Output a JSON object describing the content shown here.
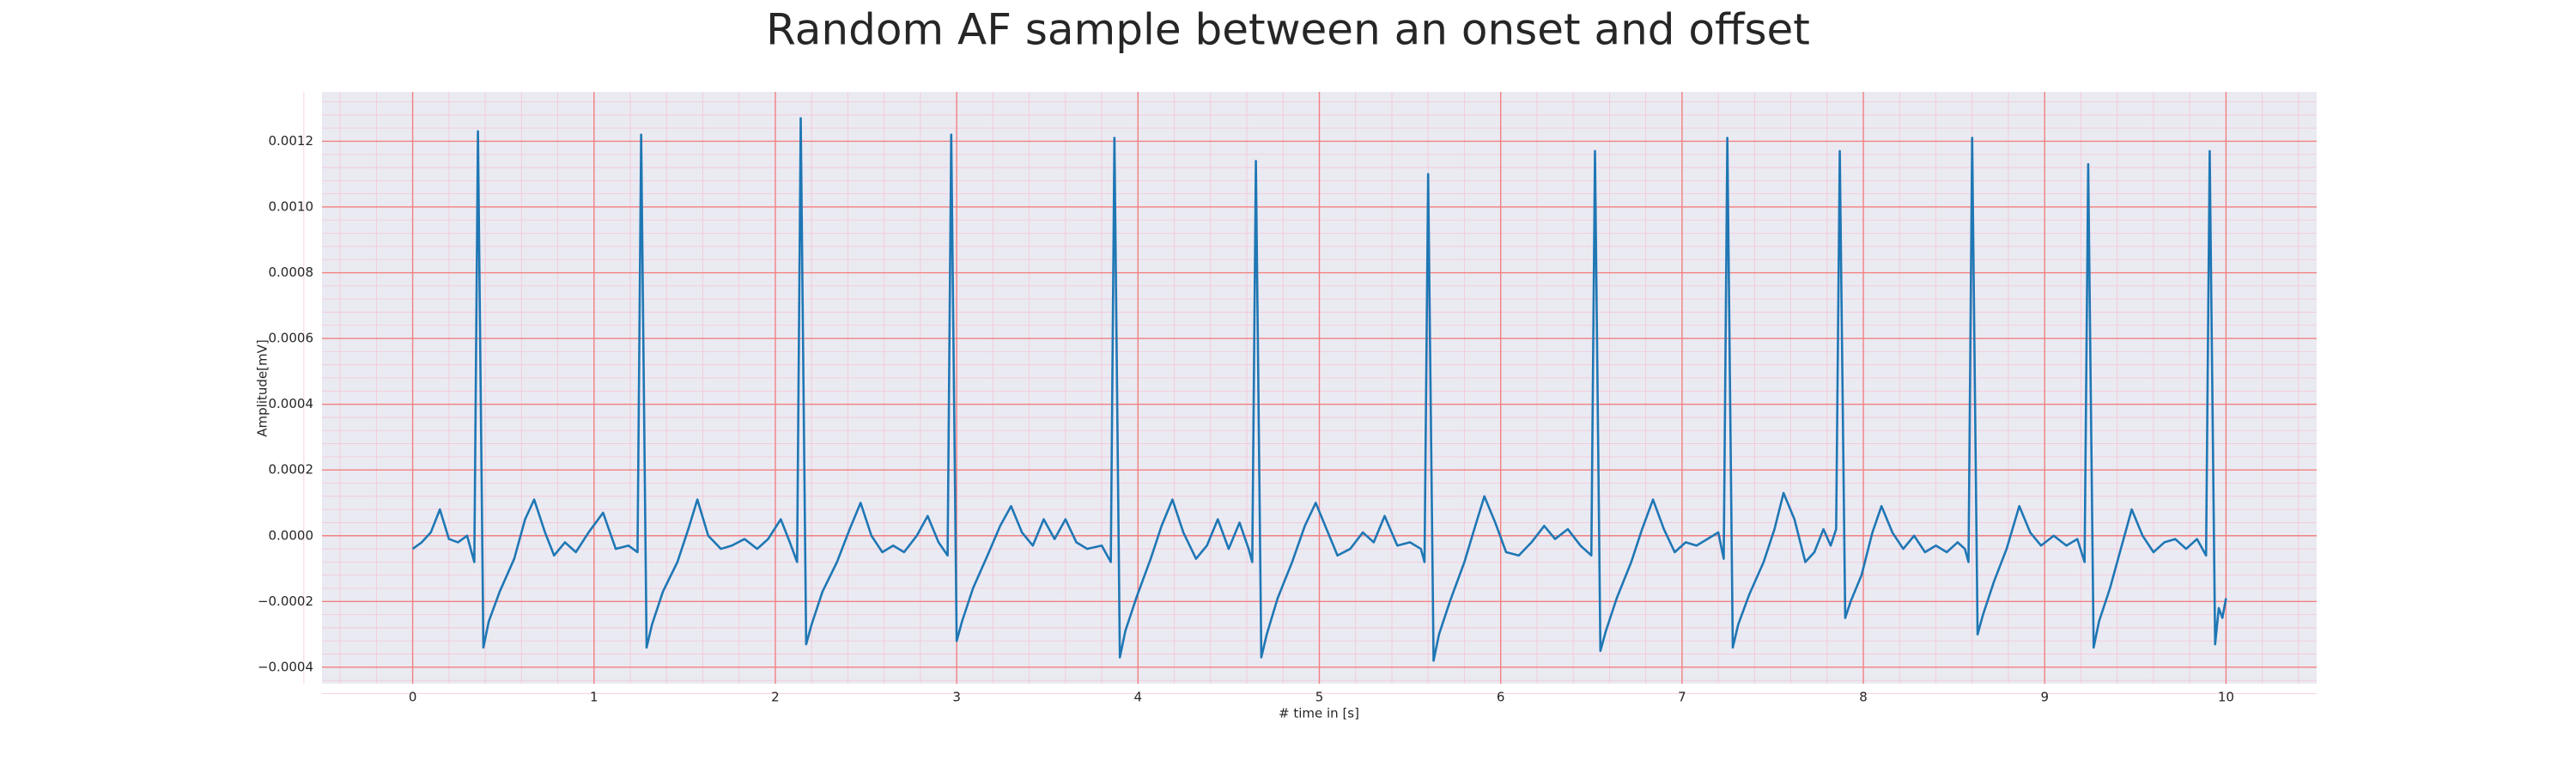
{
  "chart_data": {
    "type": "line",
    "title": "Random AF sample between an onset and offset",
    "xlabel": "# time in [s]",
    "ylabel": "Amplitude[mV]",
    "color": "#1f77b4",
    "grid": true,
    "minor_grid": true,
    "xlim": [
      -0.5,
      10.5
    ],
    "ylim": [
      -0.00045,
      0.00135
    ],
    "xticks": [
      0,
      1,
      2,
      3,
      4,
      5,
      6,
      7,
      8,
      9,
      10
    ],
    "yticks": [
      {
        "value": -0.0004,
        "label": "−0.0004"
      },
      {
        "value": -0.0002,
        "label": "−0.0002"
      },
      {
        "value": 0,
        "label": "0.0000"
      },
      {
        "value": 0.0002,
        "label": "0.0002"
      },
      {
        "value": 0.0004,
        "label": "0.0004"
      },
      {
        "value": 0.0006,
        "label": "0.0006"
      },
      {
        "value": 0.0008,
        "label": "0.0008"
      },
      {
        "value": 0.001,
        "label": "0.0010"
      },
      {
        "value": 0.0012,
        "label": "0.0012"
      }
    ],
    "x": [
      0,
      0.05,
      0.1,
      0.15,
      0.2,
      0.25,
      0.3,
      0.34,
      0.36,
      0.39,
      0.42,
      0.48,
      0.56,
      0.62,
      0.67,
      0.73,
      0.78,
      0.84,
      0.9,
      0.97,
      1.05,
      1.12,
      1.19,
      1.24,
      1.26,
      1.29,
      1.32,
      1.38,
      1.46,
      1.52,
      1.57,
      1.63,
      1.7,
      1.76,
      1.83,
      1.9,
      1.96,
      2.03,
      2.08,
      2.12,
      2.14,
      2.17,
      2.2,
      2.26,
      2.34,
      2.41,
      2.47,
      2.53,
      2.59,
      2.65,
      2.71,
      2.78,
      2.84,
      2.9,
      2.95,
      2.97,
      3,
      3.03,
      3.09,
      3.17,
      3.24,
      3.3,
      3.36,
      3.42,
      3.48,
      3.54,
      3.6,
      3.66,
      3.72,
      3.8,
      3.85,
      3.87,
      3.9,
      3.93,
      3.99,
      4.07,
      4.13,
      4.19,
      4.25,
      4.32,
      4.38,
      4.44,
      4.5,
      4.56,
      4.61,
      4.63,
      4.65,
      4.68,
      4.71,
      4.77,
      4.85,
      4.92,
      4.98,
      5.04,
      5.1,
      5.17,
      5.24,
      5.3,
      5.36,
      5.43,
      5.5,
      5.56,
      5.58,
      5.6,
      5.63,
      5.66,
      5.72,
      5.8,
      5.86,
      5.91,
      5.97,
      6.03,
      6.1,
      6.17,
      6.24,
      6.3,
      6.37,
      6.44,
      6.5,
      6.52,
      6.55,
      6.58,
      6.64,
      6.72,
      6.78,
      6.84,
      6.9,
      6.96,
      7.02,
      7.08,
      7.14,
      7.2,
      7.23,
      7.25,
      7.28,
      7.31,
      7.37,
      7.45,
      7.51,
      7.56,
      7.62,
      7.68,
      7.73,
      7.78,
      7.82,
      7.85,
      7.87,
      7.9,
      7.93,
      7.99,
      8.05,
      8.1,
      8.16,
      8.22,
      8.28,
      8.34,
      8.4,
      8.46,
      8.52,
      8.56,
      8.58,
      8.6,
      8.63,
      8.66,
      8.72,
      8.79,
      8.86,
      8.92,
      8.98,
      9.05,
      9.12,
      9.18,
      9.22,
      9.24,
      9.27,
      9.3,
      9.36,
      9.42,
      9.48,
      9.54,
      9.6,
      9.66,
      9.72,
      9.78,
      9.84,
      9.89,
      9.91,
      9.94,
      9.96,
      9.98,
      10
    ],
    "values": [
      -4e-05,
      -2e-05,
      1e-05,
      8e-05,
      -1e-05,
      -2e-05,
      0,
      -8e-05,
      0.00123,
      -0.00034,
      -0.00026,
      -0.00017,
      -7e-05,
      5e-05,
      0.00011,
      1e-05,
      -6e-05,
      -2e-05,
      -5e-05,
      1e-05,
      7e-05,
      -4e-05,
      -3e-05,
      -5e-05,
      0.00122,
      -0.00034,
      -0.00027,
      -0.00017,
      -8e-05,
      2e-05,
      0.00011,
      0,
      -4e-05,
      -3e-05,
      -1e-05,
      -4e-05,
      -1e-05,
      5e-05,
      -2e-05,
      -8e-05,
      0.00127,
      -0.00033,
      -0.00027,
      -0.00017,
      -8e-05,
      2e-05,
      0.0001,
      0,
      -5e-05,
      -3e-05,
      -5e-05,
      0,
      6e-05,
      -2e-05,
      -6e-05,
      0.00122,
      -0.00032,
      -0.00026,
      -0.00016,
      -6e-05,
      3e-05,
      9e-05,
      1e-05,
      -3e-05,
      5e-05,
      -1e-05,
      5e-05,
      -2e-05,
      -4e-05,
      -3e-05,
      -8e-05,
      0.00121,
      -0.00037,
      -0.00029,
      -0.00019,
      -7e-05,
      3e-05,
      0.00011,
      1e-05,
      -7e-05,
      -3e-05,
      5e-05,
      -4e-05,
      4e-05,
      -4e-05,
      -8e-05,
      0.00114,
      -0.00037,
      -0.0003,
      -0.00019,
      -8e-05,
      3e-05,
      0.0001,
      2e-05,
      -6e-05,
      -4e-05,
      1e-05,
      -2e-05,
      6e-05,
      -3e-05,
      -2e-05,
      -4e-05,
      -8e-05,
      0.0011,
      -0.00038,
      -0.0003,
      -0.0002,
      -8e-05,
      3e-05,
      0.00012,
      4e-05,
      -5e-05,
      -6e-05,
      -2e-05,
      3e-05,
      -1e-05,
      2e-05,
      -3e-05,
      -6e-05,
      0.00117,
      -0.00035,
      -0.00029,
      -0.00019,
      -8e-05,
      2e-05,
      0.00011,
      2e-05,
      -5e-05,
      -2e-05,
      -3e-05,
      -1e-05,
      1e-05,
      -7e-05,
      0.00121,
      -0.00034,
      -0.00027,
      -0.00018,
      -8e-05,
      2e-05,
      0.00013,
      5e-05,
      -8e-05,
      -5e-05,
      2e-05,
      -3e-05,
      2e-05,
      0.00117,
      -0.00025,
      -0.0002,
      -0.00012,
      1e-05,
      9e-05,
      1e-05,
      -4e-05,
      0,
      -5e-05,
      -3e-05,
      -5e-05,
      -2e-05,
      -4e-05,
      -8e-05,
      0.00121,
      -0.0003,
      -0.00024,
      -0.00014,
      -4e-05,
      9e-05,
      1e-05,
      -3e-05,
      0,
      -3e-05,
      -1e-05,
      -8e-05,
      0.00113,
      -0.00034,
      -0.00026,
      -0.00016,
      -4e-05,
      8e-05,
      0,
      -5e-05,
      -2e-05,
      -1e-05,
      -4e-05,
      -1e-05,
      -6e-05,
      0.00117,
      -0.00033,
      -0.00022,
      -0.00025,
      -0.00019
    ]
  }
}
